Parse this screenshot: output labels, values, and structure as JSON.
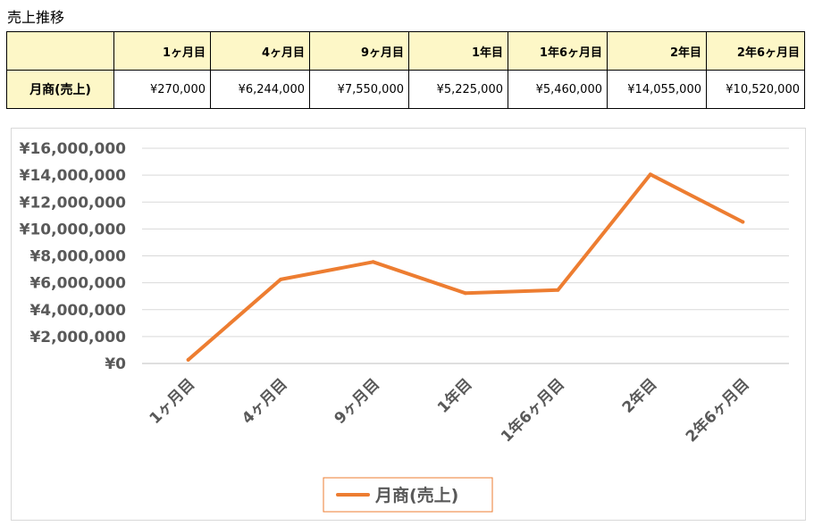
{
  "title": "売上推移",
  "table": {
    "columns": [
      "1ヶ月目",
      "4ヶ月目",
      "9ヶ月目",
      "1年目",
      "1年6ヶ月目",
      "2年目",
      "2年6ヶ月目"
    ],
    "row_label": "月商(売上)",
    "values": [
      "¥270,000",
      "¥6,244,000",
      "¥7,550,000",
      "¥5,225,000",
      "¥5,460,000",
      "¥14,055,000",
      "¥10,520,000"
    ]
  },
  "chart_data": {
    "type": "line",
    "categories": [
      "1ヶ月目",
      "4ヶ月目",
      "9ヶ月目",
      "1年目",
      "1年6ヶ月目",
      "2年目",
      "2年6ヶ月目"
    ],
    "series": [
      {
        "name": "月商(売上)",
        "values": [
          270000,
          6244000,
          7550000,
          5225000,
          5460000,
          14055000,
          10520000
        ],
        "color": "#ed7d31"
      }
    ],
    "ylim": [
      0,
      16000000
    ],
    "yticks": [
      0,
      2000000,
      4000000,
      6000000,
      8000000,
      10000000,
      12000000,
      14000000,
      16000000
    ],
    "ytick_labels": [
      "¥0",
      "¥2,000,000",
      "¥4,000,000",
      "¥6,000,000",
      "¥8,000,000",
      "¥10,000,000",
      "¥12,000,000",
      "¥14,000,000",
      "¥16,000,000"
    ],
    "grid": true,
    "legend": "bottom"
  },
  "colors": {
    "header_fill": "#fdf7c7",
    "gridline": "#d9d9d9",
    "axis_text": "#595959",
    "line": "#ed7d31"
  }
}
